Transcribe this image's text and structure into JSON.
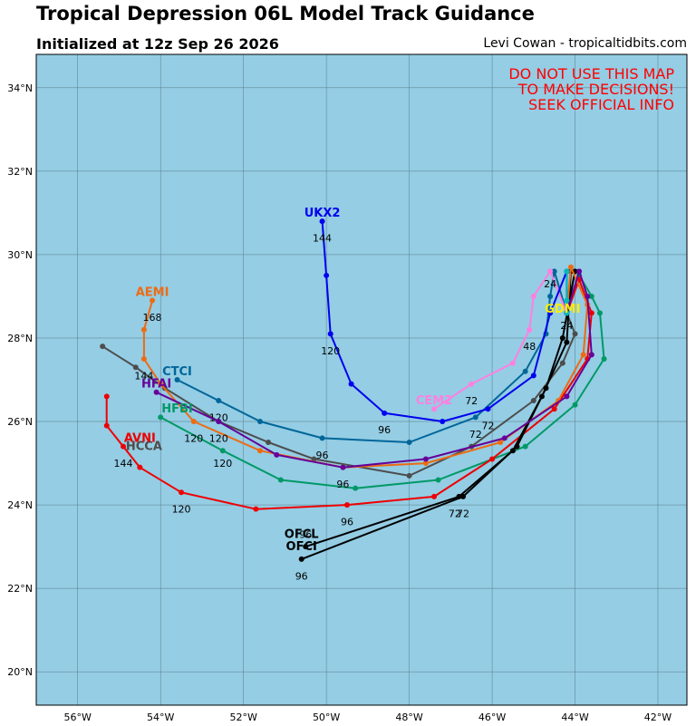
{
  "header": {
    "title": "Tropical Depression 06L Model Track Guidance",
    "init": "Initialized at 12z Sep 26 2026",
    "credit": "Levi Cowan - tropicaltidbits.com"
  },
  "warning": [
    "DO NOT USE THIS MAP",
    "TO MAKE DECISIONS!",
    "SEEK OFFICIAL INFO"
  ],
  "colors": {
    "ocean": "#94cde4",
    "grid": "#5a7a88",
    "warning": "#ff0000"
  },
  "chart_data": {
    "type": "map-tracks",
    "lon_range": [
      -57.0,
      -41.3
    ],
    "lat_range": [
      19.2,
      34.8
    ],
    "x_ticks": [
      {
        "v": -56,
        "t": "56°W"
      },
      {
        "v": -54,
        "t": "54°W"
      },
      {
        "v": -52,
        "t": "52°W"
      },
      {
        "v": -50,
        "t": "50°W"
      },
      {
        "v": -48,
        "t": "48°W"
      },
      {
        "v": -46,
        "t": "46°W"
      },
      {
        "v": -44,
        "t": "44°W"
      },
      {
        "v": -42,
        "t": "42°W"
      }
    ],
    "y_ticks": [
      {
        "v": 20,
        "t": "20°N"
      },
      {
        "v": 22,
        "t": "22°N"
      },
      {
        "v": 24,
        "t": "24°N"
      },
      {
        "v": 26,
        "t": "26°N"
      },
      {
        "v": 28,
        "t": "28°N"
      },
      {
        "v": 30,
        "t": "30°N"
      },
      {
        "v": 32,
        "t": "32°N"
      },
      {
        "v": 34,
        "t": "34°N"
      }
    ],
    "tracks": [
      {
        "name": "HCCA",
        "color": "#4d4d4d",
        "points": [
          [
            -44.2,
            28.6
          ],
          [
            -44.0,
            28.1
          ],
          [
            -44.3,
            27.4
          ],
          [
            -45.0,
            26.5
          ],
          [
            -46.5,
            25.4
          ],
          [
            -48.0,
            24.7
          ],
          [
            -50.3,
            25.1
          ],
          [
            -51.4,
            25.5
          ],
          [
            -52.6,
            26.0
          ],
          [
            -53.9,
            26.8
          ],
          [
            -54.6,
            27.3
          ],
          [
            -55.4,
            27.8
          ]
        ],
        "hour_labels": [],
        "label": {
          "text": "HCCA",
          "lon": -54.4,
          "lat": 25.4
        }
      },
      {
        "name": "HFBI",
        "color": "#009966",
        "points": [
          [
            -44.2,
            28.6
          ],
          [
            -43.9,
            29.5
          ],
          [
            -43.6,
            29.0
          ],
          [
            -43.4,
            28.6
          ],
          [
            -43.3,
            27.5
          ],
          [
            -44.0,
            26.4
          ],
          [
            -45.2,
            25.4
          ],
          [
            -47.3,
            24.6
          ],
          [
            -49.3,
            24.4
          ],
          [
            -51.1,
            24.6
          ],
          [
            -52.5,
            25.3
          ],
          [
            -54.0,
            26.1
          ]
        ],
        "hour_labels": [
          {
            "t": "120",
            "lon": -52.5,
            "lat": 25.0
          }
        ],
        "label": {
          "text": "HFBI",
          "lon": -53.6,
          "lat": 26.3
        }
      },
      {
        "name": "AVNI",
        "color": "#ee0000",
        "points": [
          [
            -44.2,
            28.6
          ],
          [
            -43.9,
            29.4
          ],
          [
            -43.6,
            28.6
          ],
          [
            -43.7,
            27.5
          ],
          [
            -44.5,
            26.3
          ],
          [
            -46.0,
            25.1
          ],
          [
            -47.4,
            24.2
          ],
          [
            -49.5,
            24.0
          ],
          [
            -51.7,
            23.9
          ],
          [
            -53.5,
            24.3
          ],
          [
            -54.5,
            24.9
          ],
          [
            -54.9,
            25.4
          ],
          [
            -55.3,
            25.9
          ],
          [
            -55.3,
            26.6
          ]
        ],
        "hour_labels": [
          {
            "t": "96",
            "lon": -49.5,
            "lat": 23.6
          },
          {
            "t": "120",
            "lon": -53.5,
            "lat": 23.9
          },
          {
            "t": "144",
            "lon": -54.9,
            "lat": 25.0
          }
        ],
        "label": {
          "text": "AVNI",
          "lon": -54.5,
          "lat": 25.6
        }
      },
      {
        "name": "OFCI",
        "color": "#000000",
        "points": [
          [
            -44.2,
            28.6
          ],
          [
            -44.0,
            29.6
          ],
          [
            -44.3,
            28.0
          ],
          [
            -44.7,
            26.8
          ],
          [
            -45.4,
            25.4
          ],
          [
            -46.7,
            24.2
          ],
          [
            -50.6,
            22.7
          ]
        ],
        "hour_labels": [
          {
            "t": "72",
            "lon": -46.7,
            "lat": 23.8
          },
          {
            "t": "96",
            "lon": -50.6,
            "lat": 22.3
          }
        ],
        "label": {
          "text": "OFCI",
          "lon": -50.6,
          "lat": 23.0
        }
      },
      {
        "name": "OFCL",
        "color": "#000000",
        "points": [
          [
            -44.2,
            28.6
          ],
          [
            -44.1,
            29.6
          ],
          [
            -44.2,
            27.9
          ],
          [
            -44.8,
            26.6
          ],
          [
            -45.5,
            25.3
          ],
          [
            -46.8,
            24.2
          ],
          [
            -50.5,
            23.0
          ]
        ],
        "hour_labels": [
          {
            "t": "72",
            "lon": -46.9,
            "lat": 23.8
          },
          {
            "t": "96",
            "lon": -50.5,
            "lat": 23.3
          }
        ],
        "label": {
          "text": "OFCL",
          "lon": -50.6,
          "lat": 23.3
        }
      },
      {
        "name": "AEMI",
        "color": "#ee6b11",
        "points": [
          [
            -44.2,
            28.6
          ],
          [
            -44.1,
            29.7
          ],
          [
            -43.7,
            28.8
          ],
          [
            -43.8,
            27.6
          ],
          [
            -44.4,
            26.5
          ],
          [
            -45.8,
            25.5
          ],
          [
            -47.6,
            25.0
          ],
          [
            -49.6,
            24.9
          ],
          [
            -51.6,
            25.3
          ],
          [
            -53.2,
            26.0
          ],
          [
            -54.0,
            26.9
          ],
          [
            -54.4,
            27.5
          ],
          [
            -54.4,
            28.2
          ],
          [
            -54.2,
            28.9
          ]
        ],
        "hour_labels": [
          {
            "t": "120",
            "lon": -53.2,
            "lat": 25.6
          },
          {
            "t": "144",
            "lon": -54.4,
            "lat": 27.1
          },
          {
            "t": "168",
            "lon": -54.2,
            "lat": 28.5
          }
        ],
        "label": {
          "text": "AEMI",
          "lon": -54.2,
          "lat": 29.1
        }
      },
      {
        "name": "CTCI",
        "color": "#006699",
        "points": [
          [
            -44.2,
            28.6
          ],
          [
            -44.5,
            29.6
          ],
          [
            -44.6,
            29.0
          ],
          [
            -44.7,
            28.1
          ],
          [
            -45.2,
            27.2
          ],
          [
            -46.4,
            26.1
          ],
          [
            -48.0,
            25.5
          ],
          [
            -50.1,
            25.6
          ],
          [
            -51.6,
            26.0
          ],
          [
            -52.6,
            26.5
          ],
          [
            -53.6,
            27.0
          ]
        ],
        "hour_labels": [
          {
            "t": "72",
            "lon": -46.4,
            "lat": 25.7
          },
          {
            "t": "96",
            "lon": -50.1,
            "lat": 25.2
          },
          {
            "t": "120",
            "lon": -52.6,
            "lat": 26.1
          }
        ],
        "label": {
          "text": "CTCI",
          "lon": -53.6,
          "lat": 27.2
        }
      },
      {
        "name": "HFAI",
        "color": "#660099",
        "points": [
          [
            -44.2,
            28.6
          ],
          [
            -43.9,
            29.6
          ],
          [
            -43.7,
            29.0
          ],
          [
            -43.6,
            27.6
          ],
          [
            -44.2,
            26.6
          ],
          [
            -45.7,
            25.6
          ],
          [
            -47.6,
            25.1
          ],
          [
            -49.6,
            24.9
          ],
          [
            -51.2,
            25.2
          ],
          [
            -52.6,
            26.0
          ],
          [
            -54.1,
            26.7
          ]
        ],
        "hour_labels": [
          {
            "t": "96",
            "lon": -49.6,
            "lat": 24.5
          },
          {
            "t": "120",
            "lon": -52.6,
            "lat": 25.6
          }
        ],
        "label": {
          "text": "HFAI",
          "lon": -54.1,
          "lat": 26.9
        }
      },
      {
        "name": "CEM2",
        "color": "#ff80e0",
        "points": [
          [
            -44.2,
            28.6
          ],
          [
            -44.6,
            29.6
          ],
          [
            -45.0,
            29.0
          ],
          [
            -45.1,
            28.2
          ],
          [
            -45.5,
            27.4
          ],
          [
            -46.5,
            26.9
          ],
          [
            -47.4,
            26.3
          ]
        ],
        "hour_labels": [
          {
            "t": "24",
            "lon": -44.6,
            "lat": 29.3
          },
          {
            "t": "48",
            "lon": -45.1,
            "lat": 27.8
          },
          {
            "t": "72",
            "lon": -46.5,
            "lat": 26.5
          }
        ],
        "label": {
          "text": "CEM2",
          "lon": -47.4,
          "lat": 26.5
        }
      },
      {
        "name": "UKX2",
        "color": "#0000ee",
        "points": [
          [
            -44.2,
            28.6
          ],
          [
            -44.2,
            29.6
          ],
          [
            -44.6,
            28.6
          ],
          [
            -45.0,
            27.1
          ],
          [
            -46.1,
            26.3
          ],
          [
            -47.2,
            26.0
          ],
          [
            -48.6,
            26.2
          ],
          [
            -49.4,
            26.9
          ],
          [
            -49.9,
            28.1
          ],
          [
            -50.0,
            29.5
          ],
          [
            -50.1,
            30.8
          ]
        ],
        "hour_labels": [
          {
            "t": "72",
            "lon": -46.1,
            "lat": 25.9
          },
          {
            "t": "96",
            "lon": -48.6,
            "lat": 25.8
          },
          {
            "t": "120",
            "lon": -49.9,
            "lat": 27.7
          },
          {
            "t": "144",
            "lon": -50.1,
            "lat": 30.4
          }
        ],
        "label": {
          "text": "UKX2",
          "lon": -50.1,
          "lat": 31.0
        }
      },
      {
        "name": "GDMI",
        "color": "#00bbbb",
        "points": [
          [
            -44.2,
            28.6
          ],
          [
            -44.2,
            29.6
          ],
          [
            -44.2,
            28.9
          ]
        ],
        "hour_labels": [
          {
            "t": "24",
            "lon": -44.2,
            "lat": 28.3
          }
        ],
        "label": {
          "text": "GDMI",
          "lon": -44.3,
          "lat": 28.7
        }
      }
    ]
  }
}
